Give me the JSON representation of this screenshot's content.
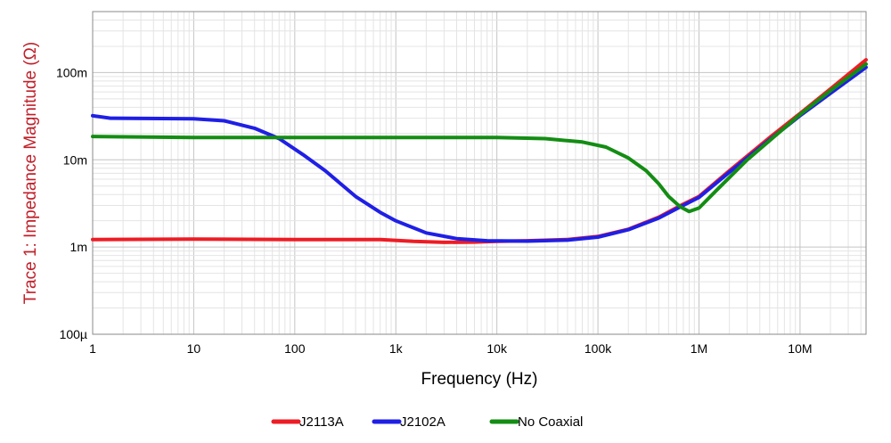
{
  "chart_data": {
    "type": "line",
    "xlabel": "Frequency (Hz)",
    "ylabel": "Trace 1: Impedance Magnitude (Ω)",
    "ylabel_color": "#c0202a",
    "x_scale": "log",
    "y_scale": "log",
    "xlim": [
      1,
      45000000
    ],
    "ylim": [
      0.0001,
      0.5
    ],
    "x_ticks": [
      {
        "value": 1,
        "label": "1"
      },
      {
        "value": 10,
        "label": "10"
      },
      {
        "value": 100,
        "label": "100"
      },
      {
        "value": 1000,
        "label": "1k"
      },
      {
        "value": 10000,
        "label": "10k"
      },
      {
        "value": 100000,
        "label": "100k"
      },
      {
        "value": 1000000,
        "label": "1M"
      },
      {
        "value": 10000000,
        "label": "10M"
      }
    ],
    "y_ticks": [
      {
        "value": 0.0001,
        "label": "100µ"
      },
      {
        "value": 0.001,
        "label": "1m"
      },
      {
        "value": 0.01,
        "label": "10m"
      },
      {
        "value": 0.1,
        "label": "100m"
      }
    ],
    "grid": true,
    "legend_position": "bottom",
    "series": [
      {
        "name": "J2113A",
        "color": "#ee1c24",
        "points": [
          [
            1,
            0.00122
          ],
          [
            10,
            0.00123
          ],
          [
            100,
            0.00122
          ],
          [
            700,
            0.00122
          ],
          [
            1500,
            0.00116
          ],
          [
            3000,
            0.00113
          ],
          [
            6000,
            0.00114
          ],
          [
            10000,
            0.00116
          ],
          [
            20000,
            0.00118
          ],
          [
            50000,
            0.00122
          ],
          [
            100000,
            0.00132
          ],
          [
            200000,
            0.0016
          ],
          [
            400000,
            0.0022
          ],
          [
            700000,
            0.0031
          ],
          [
            1000000,
            0.0038
          ],
          [
            2000000,
            0.0075
          ],
          [
            5000000,
            0.018
          ],
          [
            10000000,
            0.034
          ],
          [
            20000000,
            0.065
          ],
          [
            45000000,
            0.14
          ]
        ]
      },
      {
        "name": "J2102A",
        "color": "#1f1fe6",
        "points": [
          [
            1,
            0.032
          ],
          [
            1.5,
            0.03
          ],
          [
            10,
            0.0295
          ],
          [
            20,
            0.028
          ],
          [
            40,
            0.023
          ],
          [
            70,
            0.0175
          ],
          [
            120,
            0.0115
          ],
          [
            200,
            0.0075
          ],
          [
            400,
            0.0038
          ],
          [
            700,
            0.0025
          ],
          [
            1000,
            0.002
          ],
          [
            2000,
            0.00145
          ],
          [
            4000,
            0.00125
          ],
          [
            8000,
            0.00118
          ],
          [
            20000,
            0.00117
          ],
          [
            50000,
            0.0012
          ],
          [
            100000,
            0.0013
          ],
          [
            200000,
            0.00158
          ],
          [
            400000,
            0.00215
          ],
          [
            700000,
            0.003
          ],
          [
            1000000,
            0.0037
          ],
          [
            2000000,
            0.0072
          ],
          [
            5000000,
            0.017
          ],
          [
            10000000,
            0.032
          ],
          [
            20000000,
            0.058
          ],
          [
            45000000,
            0.115
          ]
        ]
      },
      {
        "name": "No Coaxial",
        "color": "#138d13",
        "points": [
          [
            1,
            0.0185
          ],
          [
            10,
            0.018
          ],
          [
            100,
            0.018
          ],
          [
            1000,
            0.018
          ],
          [
            10000,
            0.018
          ],
          [
            30000,
            0.0175
          ],
          [
            70000,
            0.016
          ],
          [
            120000,
            0.014
          ],
          [
            200000,
            0.0105
          ],
          [
            300000,
            0.0075
          ],
          [
            400000,
            0.0053
          ],
          [
            500000,
            0.0038
          ],
          [
            650000,
            0.0029
          ],
          [
            800000,
            0.00255
          ],
          [
            1000000,
            0.0028
          ],
          [
            1500000,
            0.0045
          ],
          [
            3000000,
            0.01
          ],
          [
            10000000,
            0.033
          ],
          [
            20000000,
            0.062
          ],
          [
            45000000,
            0.125
          ]
        ]
      }
    ]
  }
}
